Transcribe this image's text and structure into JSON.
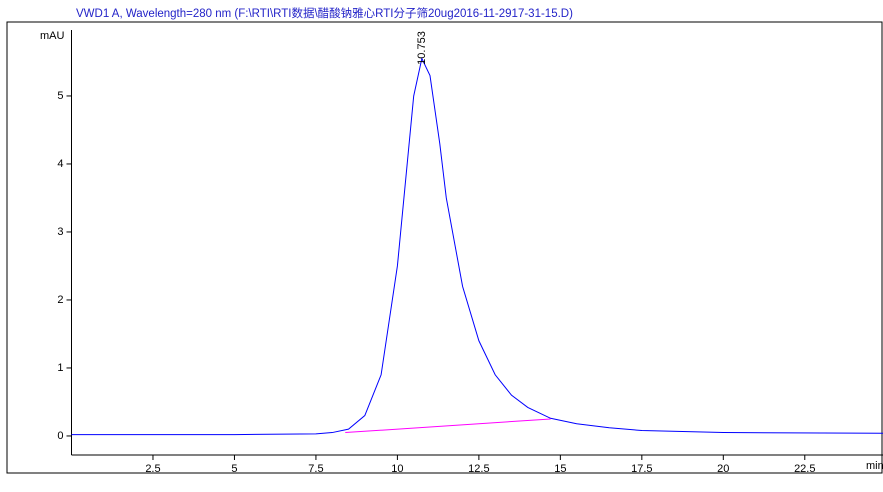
{
  "chart_data": {
    "type": "line",
    "title": "VWD1 A, Wavelength=280 nm (F:\\RTI\\RTI数据\\醋酸钠雅心RTI分子筛20ug2016-11-2917-31-15.D)",
    "y_label": "mAU",
    "x_label": "min",
    "xlim": [
      0,
      24.9
    ],
    "xticks": [
      2.5,
      5,
      7.5,
      10,
      12.5,
      15,
      17.5,
      20,
      22.5
    ],
    "ylim": [
      -0.28,
      5.97
    ],
    "yticks": [
      0,
      1,
      2,
      3,
      4,
      5
    ],
    "peak_labels": [
      10.753
    ],
    "series": [
      {
        "color": "#0000ff",
        "x": [
          0,
          5,
          7.5,
          8,
          8.5,
          9,
          9.5,
          10,
          10.3,
          10.5,
          10.75,
          11,
          11.3,
          11.5,
          12,
          12.5,
          13,
          13.5,
          14,
          14.7,
          15.5,
          16.5,
          17.5,
          20,
          24.9
        ],
        "values": [
          0.02,
          0.02,
          0.03,
          0.05,
          0.1,
          0.3,
          0.9,
          2.5,
          4.0,
          5.0,
          5.55,
          5.3,
          4.3,
          3.5,
          2.2,
          1.4,
          0.9,
          0.6,
          0.42,
          0.26,
          0.18,
          0.12,
          0.08,
          0.05,
          0.04
        ]
      },
      {
        "color": "#ff00ff",
        "x": [
          8.4,
          14.7
        ],
        "values": [
          0.05,
          0.25
        ]
      }
    ]
  }
}
